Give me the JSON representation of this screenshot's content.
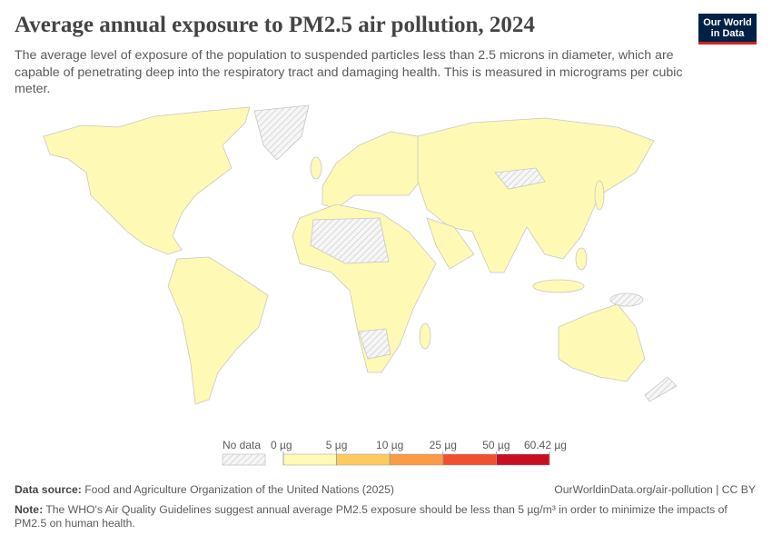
{
  "header": {
    "title": "Average annual exposure to PM2.5 air pollution, 2024",
    "subtitle": "The average level of exposure of the population to suspended particles less than 2.5 microns in diameter, which are capable of penetrating deep into the respiratory tract and damaging health. This is measured in micrograms per cubic meter.",
    "logo": "Our World in Data"
  },
  "chart_data": {
    "type": "map",
    "no_data_label": "No data",
    "legend_ticks": [
      {
        "value": 0,
        "label": "0 µg"
      },
      {
        "value": 5,
        "label": "5 µg"
      },
      {
        "value": 10,
        "label": "10 µg"
      },
      {
        "value": 25,
        "label": "25 µg"
      },
      {
        "value": 50,
        "label": "50 µg"
      },
      {
        "value": 60.42,
        "label": "60.42 µg"
      }
    ],
    "legend_colors": [
      "#fef9b4",
      "#fdca5e",
      "#fb9a44",
      "#f24f2d",
      "#c90d22"
    ]
  },
  "footer": {
    "source_label": "Data source:",
    "source": "Food and Agriculture Organization of the United Nations (2025)",
    "url": "OurWorldinData.org/air-pollution | CC BY",
    "note_label": "Note:",
    "note": "The WHO's Air Quality Guidelines suggest annual average PM2.5 exposure should be less than 5 µg/m³ in order to minimize the impacts of PM2.5 on human health."
  }
}
